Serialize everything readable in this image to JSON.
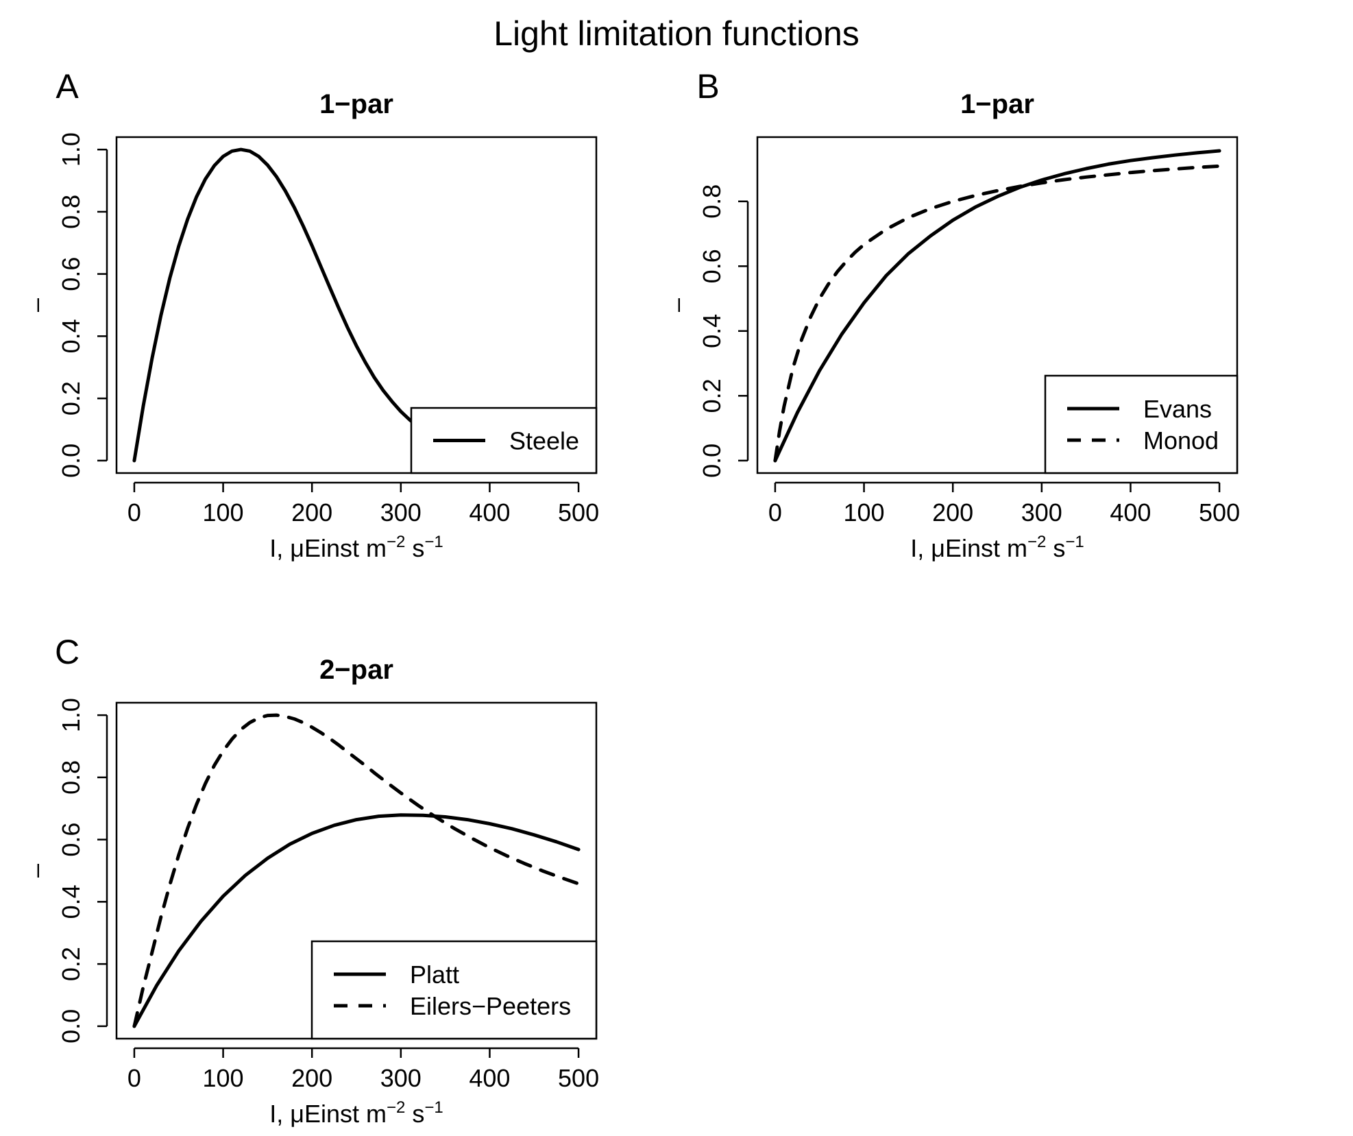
{
  "figure": {
    "title": "Light limitation functions"
  },
  "chart_data": [
    {
      "panel": "A",
      "type": "line",
      "title": "1−par",
      "xlabel": "I, μEinst m",
      "xlabel_exp1": "−2",
      "xlabel_mid": " s",
      "xlabel_exp2": "−1",
      "ylabel": "–",
      "xlim": [
        0,
        500
      ],
      "ylim": [
        0,
        1
      ],
      "xticks": [
        0,
        100,
        200,
        300,
        400,
        500
      ],
      "yticks": [
        0.0,
        0.2,
        0.4,
        0.6,
        0.8,
        1.0
      ],
      "xtick_labels": [
        "0",
        "100",
        "200",
        "300",
        "400",
        "500"
      ],
      "ytick_labels": [
        "0.0",
        "0.2",
        "0.4",
        "0.6",
        "0.8",
        "1.0"
      ],
      "legend_position": "bottom-right",
      "series": [
        {
          "name": "Steele",
          "style": "solid",
          "x": [
            0,
            10,
            20,
            30,
            40,
            50,
            60,
            70,
            80,
            90,
            100,
            110,
            120,
            130,
            140,
            150,
            160,
            170,
            180,
            190,
            200,
            210,
            220,
            230,
            240,
            250,
            260,
            270,
            280,
            290,
            300,
            310,
            320,
            330,
            340,
            350,
            360,
            370,
            380,
            390,
            400,
            410,
            420,
            430,
            440,
            450,
            460,
            470,
            480,
            490,
            500
          ],
          "y": [
            0,
            0.174,
            0.329,
            0.467,
            0.587,
            0.689,
            0.776,
            0.848,
            0.905,
            0.948,
            0.978,
            0.995,
            1.0,
            0.995,
            0.978,
            0.95,
            0.913,
            0.867,
            0.814,
            0.755,
            0.691,
            0.624,
            0.557,
            0.491,
            0.428,
            0.369,
            0.316,
            0.268,
            0.226,
            0.19,
            0.158,
            0.131,
            0.108,
            0.089,
            0.073,
            0.06,
            0.049,
            0.04,
            0.032,
            0.026,
            0.021,
            0.017,
            0.014,
            0.011,
            0.009,
            0.007,
            0.006,
            0.005,
            0.004,
            0.003,
            0.002
          ]
        }
      ]
    },
    {
      "panel": "B",
      "type": "line",
      "title": "1−par",
      "xlabel": "I, μEinst m",
      "xlabel_exp1": "−2",
      "xlabel_mid": " s",
      "xlabel_exp2": "−1",
      "ylabel": "–",
      "xlim": [
        0,
        500
      ],
      "ylim": [
        0,
        0.96
      ],
      "xticks": [
        0,
        100,
        200,
        300,
        400,
        500
      ],
      "yticks": [
        0.0,
        0.2,
        0.4,
        0.6,
        0.8
      ],
      "xtick_labels": [
        "0",
        "100",
        "200",
        "300",
        "400",
        "500"
      ],
      "ytick_labels": [
        "0.0",
        "0.2",
        "0.4",
        "0.6",
        "0.8"
      ],
      "legend_position": "bottom-right",
      "series": [
        {
          "name": "Evans",
          "style": "solid",
          "x": [
            0,
            25,
            50,
            75,
            100,
            125,
            150,
            175,
            200,
            225,
            250,
            275,
            300,
            325,
            350,
            375,
            400,
            425,
            450,
            475,
            500
          ],
          "y": [
            0,
            0.148,
            0.278,
            0.39,
            0.487,
            0.571,
            0.639,
            0.694,
            0.742,
            0.782,
            0.815,
            0.843,
            0.866,
            0.885,
            0.901,
            0.915,
            0.926,
            0.935,
            0.943,
            0.95,
            0.956
          ]
        },
        {
          "name": "Monod",
          "style": "dashed",
          "x": [
            0,
            5,
            10,
            20,
            30,
            40,
            50,
            60,
            70,
            80,
            90,
            100,
            125,
            150,
            175,
            200,
            225,
            250,
            275,
            300,
            325,
            350,
            375,
            400,
            425,
            450,
            475,
            500
          ],
          "y": [
            0,
            0.091,
            0.167,
            0.286,
            0.375,
            0.444,
            0.5,
            0.545,
            0.583,
            0.615,
            0.643,
            0.667,
            0.714,
            0.75,
            0.778,
            0.8,
            0.818,
            0.833,
            0.846,
            0.857,
            0.867,
            0.875,
            0.882,
            0.889,
            0.895,
            0.9,
            0.905,
            0.909
          ]
        }
      ]
    },
    {
      "panel": "C",
      "type": "line",
      "title": "2−par",
      "xlabel": "I, μEinst m",
      "xlabel_exp1": "−2",
      "xlabel_mid": " s",
      "xlabel_exp2": "−1",
      "ylabel": "–",
      "xlim": [
        0,
        500
      ],
      "ylim": [
        0,
        1
      ],
      "xticks": [
        0,
        100,
        200,
        300,
        400,
        500
      ],
      "yticks": [
        0.0,
        0.2,
        0.4,
        0.6,
        0.8,
        1.0
      ],
      "xtick_labels": [
        "0",
        "100",
        "200",
        "300",
        "400",
        "500"
      ],
      "ytick_labels": [
        "0.0",
        "0.2",
        "0.4",
        "0.6",
        "0.8",
        "1.0"
      ],
      "legend_position": "bottom-right",
      "series": [
        {
          "name": "Platt",
          "style": "solid",
          "x": [
            0,
            25,
            50,
            75,
            100,
            125,
            150,
            175,
            200,
            225,
            250,
            275,
            300,
            325,
            350,
            375,
            400,
            425,
            450,
            475,
            500
          ],
          "y": [
            0,
            0.13,
            0.242,
            0.337,
            0.418,
            0.485,
            0.54,
            0.585,
            0.62,
            0.646,
            0.664,
            0.675,
            0.679,
            0.678,
            0.673,
            0.664,
            0.651,
            0.635,
            0.615,
            0.593,
            0.568
          ]
        },
        {
          "name": "Eilers−Peeters",
          "style": "dashed",
          "x": [
            0,
            10,
            20,
            30,
            40,
            50,
            60,
            70,
            80,
            90,
            100,
            110,
            120,
            130,
            140,
            150,
            160,
            170,
            180,
            190,
            200,
            210,
            220,
            230,
            240,
            250,
            260,
            270,
            280,
            290,
            300,
            320,
            340,
            360,
            380,
            400,
            420,
            440,
            460,
            480,
            500
          ],
          "y": [
            0,
            0.125,
            0.238,
            0.351,
            0.455,
            0.55,
            0.636,
            0.713,
            0.78,
            0.838,
            0.885,
            0.923,
            0.954,
            0.976,
            0.991,
            0.999,
            1.0,
            0.996,
            0.988,
            0.976,
            0.961,
            0.944,
            0.925,
            0.904,
            0.882,
            0.86,
            0.838,
            0.815,
            0.793,
            0.771,
            0.75,
            0.709,
            0.671,
            0.636,
            0.604,
            0.574,
            0.547,
            0.522,
            0.499,
            0.478,
            0.458
          ]
        }
      ]
    }
  ]
}
